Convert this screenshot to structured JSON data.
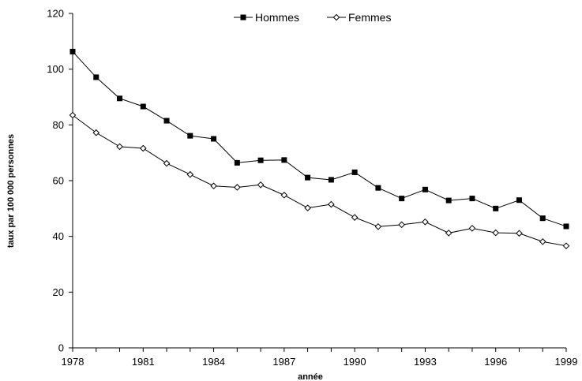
{
  "chart_data": {
    "type": "line",
    "x": [
      1978,
      1979,
      1980,
      1981,
      1982,
      1983,
      1984,
      1985,
      1986,
      1987,
      1988,
      1989,
      1990,
      1991,
      1992,
      1993,
      1994,
      1995,
      1996,
      1997,
      1998,
      1999
    ],
    "series": [
      {
        "name": "Hommes",
        "marker": "filled-square",
        "color": "#000000",
        "values": [
          106.3,
          97.1,
          89.5,
          86.6,
          81.5,
          76.1,
          75.0,
          66.4,
          67.3,
          67.4,
          61.1,
          60.3,
          63.0,
          57.4,
          53.6,
          56.8,
          52.9,
          53.6,
          50.0,
          53.0,
          46.5,
          43.6
        ]
      },
      {
        "name": "Femmes",
        "marker": "hollow-diamond",
        "color": "#000000",
        "values": [
          83.5,
          77.2,
          72.2,
          71.6,
          66.2,
          62.2,
          58.1,
          57.6,
          58.5,
          54.8,
          50.2,
          51.5,
          46.8,
          43.5,
          44.2,
          45.2,
          41.2,
          42.9,
          41.3,
          41.1,
          38.1,
          36.6
        ]
      }
    ],
    "xlabel": "année",
    "ylabel": "taux par 100 000 personnes",
    "xticks": [
      "1978",
      "1981",
      "1984",
      "1987",
      "1990",
      "1993",
      "1996",
      "1999"
    ],
    "yticks": [
      "0",
      "20",
      "40",
      "60",
      "80",
      "100",
      "120"
    ],
    "xlim": [
      1978,
      1999
    ],
    "ylim": [
      0,
      120
    ],
    "grid": false,
    "legend_position": "top-center"
  }
}
